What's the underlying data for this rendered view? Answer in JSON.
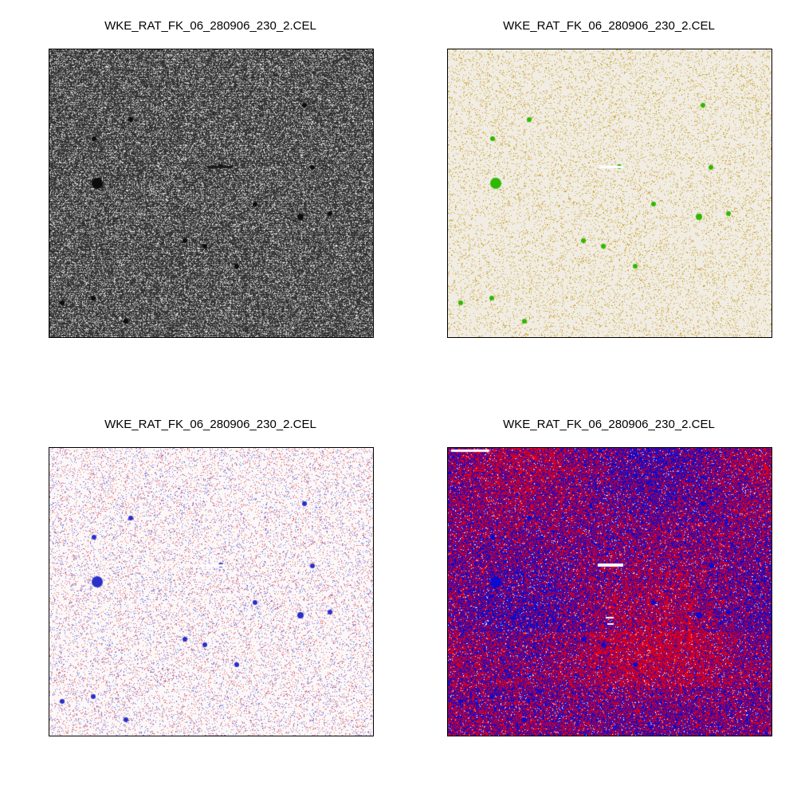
{
  "figure": {
    "panels": [
      {
        "title": "WKE_RAT_FK_06_280906_230_2.CEL",
        "scheme": "grayscale",
        "colors": {
          "background": "#2e2e2e",
          "speckle": "#d8d8d8",
          "spot": "#0c0c0c"
        }
      },
      {
        "title": "WKE_RAT_FK_06_280906_230_2.CEL",
        "scheme": "cream-olive-green",
        "colors": {
          "background": "#f1ede4",
          "speckle": "#c9a227",
          "spot": "#2eb800"
        }
      },
      {
        "title": "WKE_RAT_FK_06_280906_230_2.CEL",
        "scheme": "white-red-blue",
        "colors": {
          "background": "#fdf8f8",
          "speckle_positive": "#e86a6a",
          "speckle_negative": "#6b74e0",
          "spot": "#2a2fc8"
        }
      },
      {
        "title": "WKE_RAT_FK_06_280906_230_2.CEL",
        "scheme": "red-blue",
        "colors": {
          "red": "#e0001a",
          "blue": "#0a0ad0",
          "white": "#ffffff"
        }
      }
    ]
  }
}
